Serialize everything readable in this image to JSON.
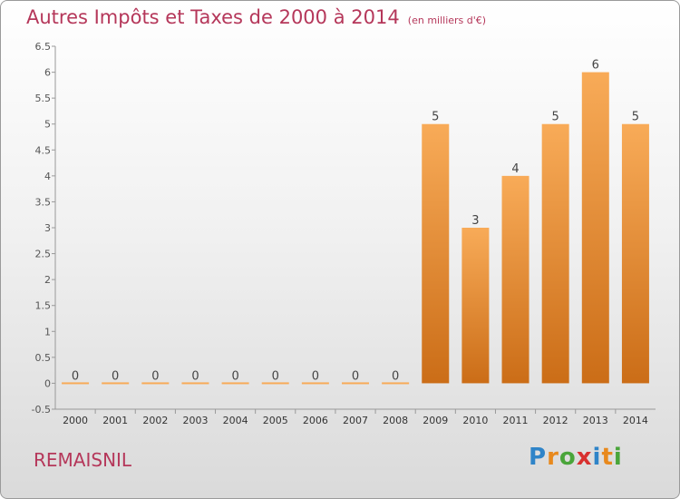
{
  "title": {
    "main": "Autres Impôts et Taxes de 2000 à 2014",
    "unit": "(en milliers d'€)"
  },
  "commune": "REMAISNIL",
  "logo": {
    "text": "Proxiti",
    "letter_colors": [
      "#2f84c8",
      "#e8891d",
      "#4aa53a",
      "#d8302f",
      "#2f84c8",
      "#e8891d",
      "#4aa53a"
    ]
  },
  "colors": {
    "bar_light": "#f8ab58",
    "bar_dark": "#cb6d17",
    "axis": "#999999",
    "grid": "#cccccc",
    "accent": "#b5375a"
  },
  "chart_data": {
    "type": "bar",
    "title": "Autres Impôts et Taxes de 2000 à 2014",
    "subtitle": "(en milliers d'€)",
    "categories": [
      "2000",
      "2001",
      "2002",
      "2003",
      "2004",
      "2005",
      "2006",
      "2007",
      "2008",
      "2009",
      "2010",
      "2011",
      "2012",
      "2013",
      "2014"
    ],
    "values": [
      0,
      0,
      0,
      0,
      0,
      0,
      0,
      0,
      0,
      5,
      3,
      4,
      5,
      6,
      5
    ],
    "data_labels": [
      "0",
      "0",
      "0",
      "0",
      "0",
      "0",
      "0",
      "0",
      "0",
      "5",
      "3",
      "4",
      "5",
      "6",
      "5"
    ],
    "ylim": [
      -0.5,
      6.5
    ],
    "yticks": [
      -0.5,
      0,
      0.5,
      1,
      1.5,
      2,
      2.5,
      3,
      3.5,
      4,
      4.5,
      5,
      5.5,
      6,
      6.5
    ],
    "ytick_labels": [
      "-0.5",
      "0",
      "0.5",
      "1",
      "1.5",
      "2",
      "2.5",
      "3",
      "3.5",
      "4",
      "4.5",
      "5",
      "5.5",
      "6",
      "6.5"
    ],
    "grid": false,
    "legend": "none"
  }
}
